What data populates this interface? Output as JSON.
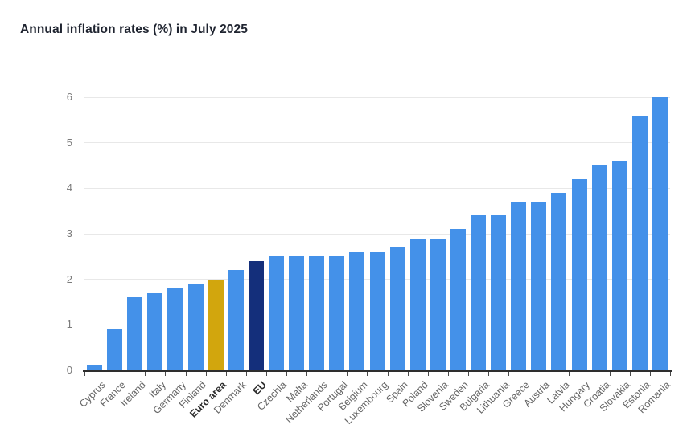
{
  "page": {
    "title": "Annual inflation rates (%) in July 2025"
  },
  "chart_data": {
    "type": "bar",
    "title": "Annual inflation rates (%) in July 2025",
    "categories": [
      "Cyprus",
      "France",
      "Ireland",
      "Italy",
      "Germany",
      "Finland",
      "Euro area",
      "Denmark",
      "EU",
      "Czechia",
      "Malta",
      "Netherlands",
      "Portugal",
      "Belgium",
      "Luxembourg",
      "Spain",
      "Poland",
      "Slovenia",
      "Sweden",
      "Bulgaria",
      "Lithuania",
      "Greece",
      "Austria",
      "Latvia",
      "Hungary",
      "Croatia",
      "Slovakia",
      "Estonia",
      "Romania"
    ],
    "values": [
      0.1,
      0.9,
      1.6,
      1.7,
      1.8,
      1.9,
      2.0,
      2.2,
      2.4,
      2.5,
      2.5,
      2.5,
      2.5,
      2.6,
      2.6,
      2.7,
      2.9,
      2.9,
      3.1,
      3.4,
      3.4,
      3.7,
      3.7,
      3.9,
      4.2,
      4.5,
      4.6,
      5.6,
      6.0
    ],
    "xlabel": "",
    "ylabel": "",
    "ylim": [
      0,
      6
    ],
    "yticks": [
      0,
      1,
      2,
      3,
      4,
      5,
      6
    ],
    "grid": true,
    "legend": "none",
    "bar_color": "#4491E9",
    "highlights": [
      {
        "category": "Euro area",
        "color": "#D2A60D",
        "bold_label": true
      },
      {
        "category": "EU",
        "color": "#142F7B",
        "bold_label": true
      }
    ]
  }
}
